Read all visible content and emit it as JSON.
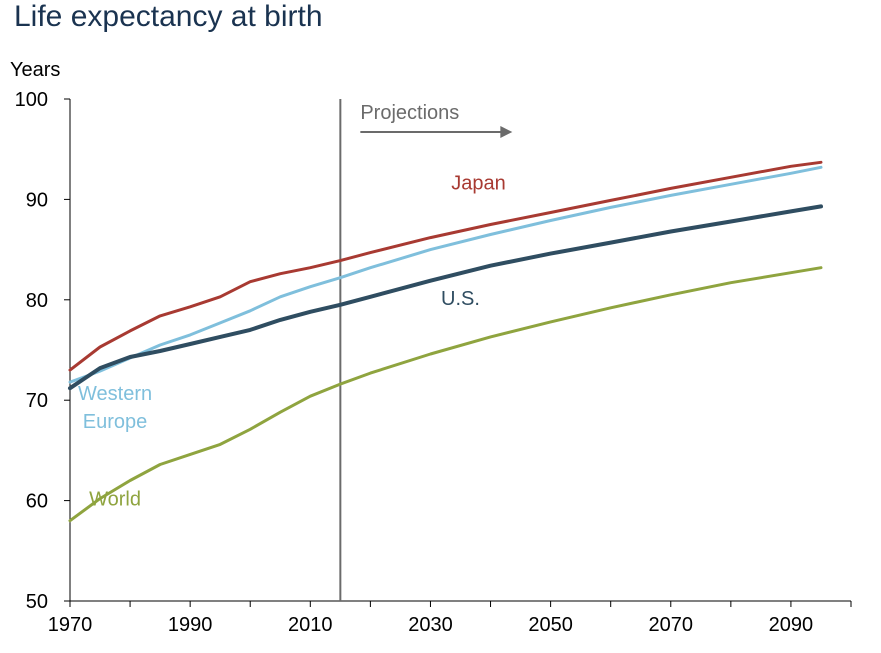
{
  "chart_data": {
    "type": "line",
    "title": "Life expectancy at birth",
    "ylabel": "Years",
    "xlabel": "",
    "xlim": [
      1970,
      2100
    ],
    "ylim": [
      50,
      100
    ],
    "xticks": [
      1970,
      1990,
      2010,
      2030,
      2050,
      2070,
      2090
    ],
    "yticks": [
      50,
      60,
      70,
      80,
      90,
      100
    ],
    "grid": false,
    "legend": "inline labels",
    "projection": {
      "label": "Projections",
      "start_year": 2015
    },
    "series": [
      {
        "name": "Japan",
        "color": "#a83a32",
        "x": [
          1970,
          1975,
          1980,
          1985,
          1990,
          1995,
          2000,
          2005,
          2010,
          2015,
          2020,
          2030,
          2040,
          2050,
          2060,
          2070,
          2080,
          2090,
          2095
        ],
        "y": [
          73.0,
          75.3,
          76.9,
          78.4,
          79.3,
          80.3,
          81.8,
          82.6,
          83.2,
          83.9,
          84.7,
          86.2,
          87.5,
          88.7,
          89.9,
          91.1,
          92.2,
          93.3,
          93.7
        ]
      },
      {
        "name": "Western Europe",
        "color": "#7fbfdc",
        "x": [
          1970,
          1975,
          1980,
          1985,
          1990,
          1995,
          2000,
          2005,
          2010,
          2015,
          2020,
          2030,
          2040,
          2050,
          2060,
          2070,
          2080,
          2090,
          2095
        ],
        "y": [
          71.8,
          72.9,
          74.2,
          75.5,
          76.5,
          77.7,
          78.9,
          80.3,
          81.3,
          82.2,
          83.2,
          85.0,
          86.5,
          87.9,
          89.2,
          90.4,
          91.5,
          92.6,
          93.2
        ]
      },
      {
        "name": "U.S.",
        "color": "#2f4d61",
        "x": [
          1970,
          1975,
          1980,
          1985,
          1990,
          1995,
          2000,
          2005,
          2010,
          2015,
          2020,
          2030,
          2040,
          2050,
          2060,
          2070,
          2080,
          2090,
          2095
        ],
        "y": [
          71.2,
          73.2,
          74.3,
          74.9,
          75.6,
          76.3,
          77.0,
          78.0,
          78.8,
          79.5,
          80.3,
          81.9,
          83.4,
          84.6,
          85.7,
          86.8,
          87.8,
          88.8,
          89.3
        ]
      },
      {
        "name": "World",
        "color": "#8fa43f",
        "x": [
          1970,
          1975,
          1980,
          1985,
          1990,
          1995,
          2000,
          2005,
          2010,
          2015,
          2020,
          2030,
          2040,
          2050,
          2060,
          2070,
          2080,
          2090,
          2095
        ],
        "y": [
          58.0,
          60.2,
          62.0,
          63.6,
          64.6,
          65.6,
          67.1,
          68.8,
          70.4,
          71.6,
          72.7,
          74.6,
          76.3,
          77.8,
          79.2,
          80.5,
          81.7,
          82.7,
          83.2
        ]
      }
    ],
    "series_labels": [
      {
        "series": "Japan",
        "lines": [
          "Japan"
        ],
        "anchor_x": 2038,
        "anchor_y": 91
      },
      {
        "series": "Western Europe",
        "lines": [
          "Western",
          "Europe"
        ],
        "anchor_x": 1977.5,
        "anchor_y": 70
      },
      {
        "series": "U.S.",
        "lines": [
          "U.S."
        ],
        "anchor_x": 2035,
        "anchor_y": 79.5
      },
      {
        "series": "World",
        "lines": [
          "World"
        ],
        "anchor_x": 1977.5,
        "anchor_y": 59.5
      }
    ]
  }
}
